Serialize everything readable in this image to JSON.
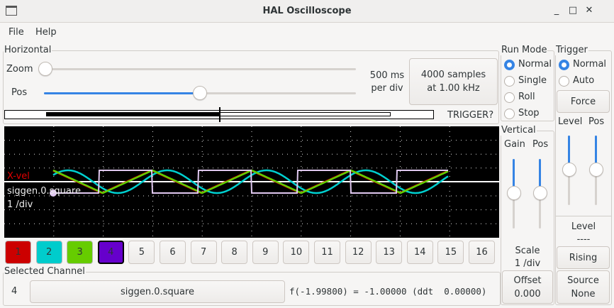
{
  "window": {
    "title": "HAL Oscilloscope",
    "minimize": "_",
    "maximize": "□",
    "close": "✕"
  },
  "menu": [
    "File",
    "Help"
  ],
  "horizontal": {
    "label": "Horizontal",
    "zoom_label": "Zoom",
    "pos_label": "Pos",
    "zoom_value": 0,
    "pos_value": 0.5,
    "rate_line1": "500 ms",
    "rate_line2": "per div",
    "samples_line1": "4000 samples",
    "samples_line2": "at 1.00 kHz",
    "trigger_status": "TRIGGER?"
  },
  "run_mode": {
    "label": "Run Mode",
    "options": [
      "Normal",
      "Single",
      "Roll",
      "Stop"
    ],
    "selected": "Normal"
  },
  "trigger": {
    "label": "Trigger",
    "options": [
      "Normal",
      "Auto"
    ],
    "selected": "Normal",
    "force": "Force",
    "level_label": "Level",
    "pos_label": "Pos",
    "level_value": 0.5,
    "pos_value": 0.5,
    "level_title": "Level",
    "level_readout": "----",
    "edge": "Rising",
    "source_label": "Source",
    "source_value": "None"
  },
  "vertical": {
    "label": "Vertical",
    "gain_label": "Gain",
    "pos_label": "Pos",
    "gain_value": 0.5,
    "pos_value": 0.5,
    "scale_label": "Scale",
    "scale_value": "1 /div",
    "offset_label": "Offset",
    "offset_value": "0.000"
  },
  "plot": {
    "labels": {
      "ch1_name": "X-vel",
      "ch_selected": "siggen.0.square",
      "scale": "1 /div"
    },
    "colors": {
      "ch1": "#e00000",
      "ch2": "#00d0d0",
      "ch3": "#60d000",
      "ch4": "#e0c8f0"
    }
  },
  "channels": [
    {
      "label": "1",
      "color": "#cc0000"
    },
    {
      "label": "2",
      "color": "#00cccc"
    },
    {
      "label": "3",
      "color": "#66cc00"
    },
    {
      "label": "4",
      "color": "#6600cc"
    },
    {
      "label": "5"
    },
    {
      "label": "6"
    },
    {
      "label": "7"
    },
    {
      "label": "8"
    },
    {
      "label": "9"
    },
    {
      "label": "10"
    },
    {
      "label": "11"
    },
    {
      "label": "12"
    },
    {
      "label": "13"
    },
    {
      "label": "14"
    },
    {
      "label": "15"
    },
    {
      "label": "16"
    }
  ],
  "selected_channel": {
    "label": "Selected Channel",
    "number": "4",
    "name": "siggen.0.square",
    "readout": "f(-1.99800) = -1.00000 (ddt  0.00000)"
  }
}
